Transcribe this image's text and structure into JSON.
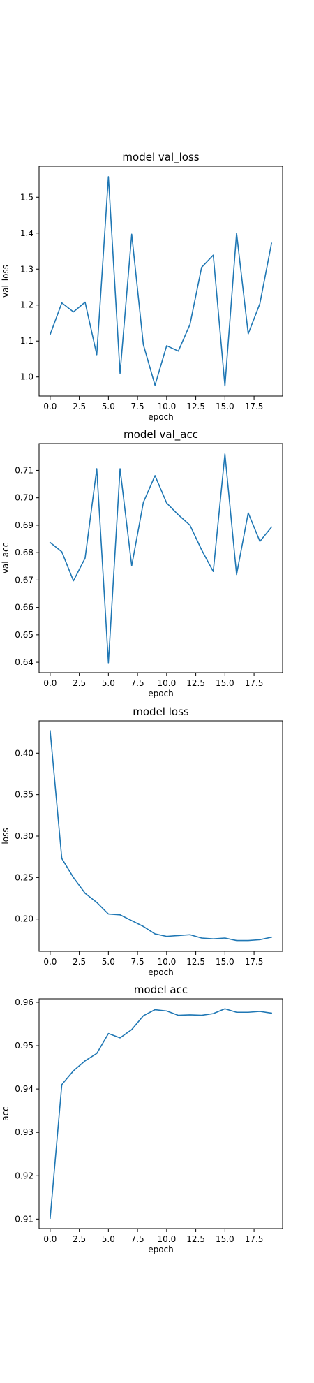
{
  "chart_data": [
    {
      "type": "line",
      "title": "model val_loss",
      "xlabel": "epoch",
      "ylabel": "val_loss",
      "xlim": [
        -0.95,
        19.95
      ],
      "ylim": [
        0.947,
        1.586
      ],
      "xticks": [
        0,
        2.5,
        5,
        7.5,
        10,
        12.5,
        15,
        17.5
      ],
      "xtick_labels": [
        "0.0",
        "2.5",
        "5.0",
        "7.5",
        "10.0",
        "12.5",
        "15.0",
        "17.5"
      ],
      "yticks": [
        1.0,
        1.1,
        1.2,
        1.3,
        1.4,
        1.5
      ],
      "ytick_labels": [
        "1.0",
        "1.1",
        "1.2",
        "1.3",
        "1.4",
        "1.5"
      ],
      "grid": false,
      "color": "#1f77b4",
      "series": [
        {
          "x": [
            0,
            1,
            2,
            3,
            4,
            5,
            6,
            7,
            8,
            9,
            10,
            11,
            12,
            13,
            14,
            15,
            16,
            17,
            18,
            19
          ],
          "values": [
            1.118,
            1.206,
            1.181,
            1.208,
            1.062,
            1.557,
            1.01,
            1.397,
            1.09,
            0.977,
            1.087,
            1.072,
            1.146,
            1.305,
            1.339,
            0.975,
            1.4,
            1.12,
            1.204,
            1.372
          ]
        }
      ]
    },
    {
      "type": "line",
      "title": "model val_acc",
      "xlabel": "epoch",
      "ylabel": "val_acc",
      "xlim": [
        -0.95,
        19.95
      ],
      "ylim": [
        0.6362,
        0.7198
      ],
      "xticks": [
        0,
        2.5,
        5,
        7.5,
        10,
        12.5,
        15,
        17.5
      ],
      "xtick_labels": [
        "0.0",
        "2.5",
        "5.0",
        "7.5",
        "10.0",
        "12.5",
        "15.0",
        "17.5"
      ],
      "yticks": [
        0.64,
        0.65,
        0.66,
        0.67,
        0.68,
        0.69,
        0.7,
        0.71
      ],
      "ytick_labels": [
        "0.64",
        "0.65",
        "0.66",
        "0.67",
        "0.68",
        "0.69",
        "0.70",
        "0.71"
      ],
      "grid": false,
      "color": "#1f77b4",
      "series": [
        {
          "x": [
            0,
            1,
            2,
            3,
            4,
            5,
            6,
            7,
            8,
            9,
            10,
            11,
            12,
            13,
            14,
            15,
            16,
            17,
            18,
            19
          ],
          "values": [
            0.6837,
            0.6803,
            0.6697,
            0.678,
            0.7106,
            0.6398,
            0.7106,
            0.6752,
            0.6983,
            0.7081,
            0.6981,
            0.6938,
            0.69,
            0.681,
            0.6731,
            0.716,
            0.672,
            0.6945,
            0.6841,
            0.6893
          ]
        }
      ]
    },
    {
      "type": "line",
      "title": "model loss",
      "xlabel": "epoch",
      "ylabel": "loss",
      "xlim": [
        -0.95,
        19.95
      ],
      "ylim": [
        0.161,
        0.439
      ],
      "xticks": [
        0,
        2.5,
        5,
        7.5,
        10,
        12.5,
        15,
        17.5
      ],
      "xtick_labels": [
        "0.0",
        "2.5",
        "5.0",
        "7.5",
        "10.0",
        "12.5",
        "15.0",
        "17.5"
      ],
      "yticks": [
        0.2,
        0.25,
        0.3,
        0.35,
        0.4
      ],
      "ytick_labels": [
        "0.20",
        "0.25",
        "0.30",
        "0.35",
        "0.40"
      ],
      "grid": false,
      "color": "#1f77b4",
      "series": [
        {
          "x": [
            0,
            1,
            2,
            3,
            4,
            5,
            6,
            7,
            8,
            9,
            10,
            11,
            12,
            13,
            14,
            15,
            16,
            17,
            18,
            19
          ],
          "values": [
            0.427,
            0.273,
            0.25,
            0.231,
            0.22,
            0.206,
            0.205,
            0.198,
            0.191,
            0.182,
            0.179,
            0.18,
            0.181,
            0.177,
            0.176,
            0.177,
            0.174,
            0.174,
            0.175,
            0.178
          ]
        }
      ]
    },
    {
      "type": "line",
      "title": "model acc",
      "xlabel": "epoch",
      "ylabel": "acc",
      "xlim": [
        -0.95,
        19.95
      ],
      "ylim": [
        0.9078,
        0.9608
      ],
      "xticks": [
        0,
        2.5,
        5,
        7.5,
        10,
        12.5,
        15,
        17.5
      ],
      "xtick_labels": [
        "0.0",
        "2.5",
        "5.0",
        "7.5",
        "10.0",
        "12.5",
        "15.0",
        "17.5"
      ],
      "yticks": [
        0.91,
        0.92,
        0.93,
        0.94,
        0.95,
        0.96
      ],
      "ytick_labels": [
        "0.91",
        "0.92",
        "0.93",
        "0.94",
        "0.95",
        "0.96"
      ],
      "grid": false,
      "color": "#1f77b4",
      "series": [
        {
          "x": [
            0,
            1,
            2,
            3,
            4,
            5,
            6,
            7,
            8,
            9,
            10,
            11,
            12,
            13,
            14,
            15,
            16,
            17,
            18,
            19
          ],
          "values": [
            0.9102,
            0.941,
            0.9442,
            0.9465,
            0.9482,
            0.9528,
            0.9518,
            0.9537,
            0.9569,
            0.9583,
            0.958,
            0.957,
            0.9571,
            0.957,
            0.9574,
            0.9585,
            0.9577,
            0.9577,
            0.9579,
            0.9575
          ]
        }
      ]
    }
  ]
}
